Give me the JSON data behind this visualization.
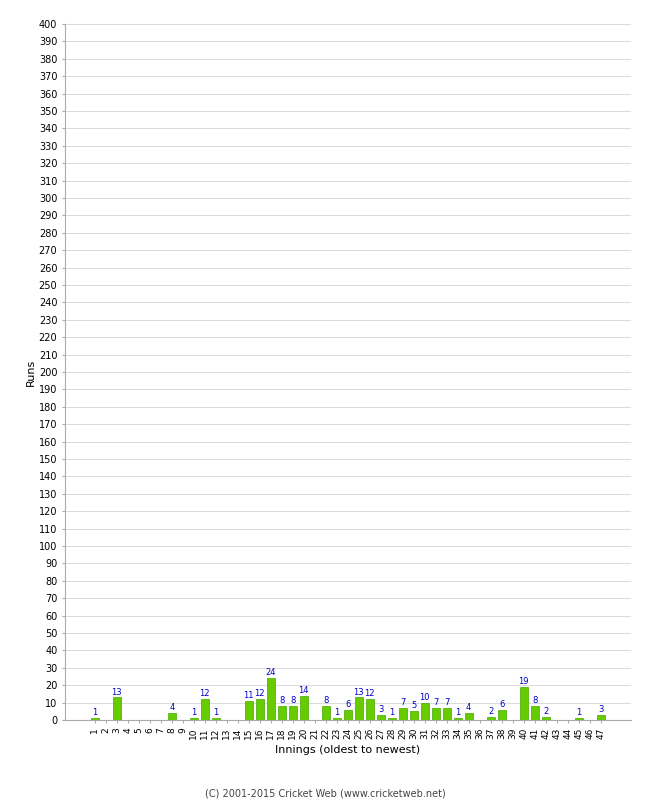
{
  "values": [
    1,
    0,
    13,
    0,
    0,
    0,
    0,
    4,
    0,
    1,
    12,
    1,
    0,
    0,
    11,
    12,
    24,
    8,
    8,
    14,
    0,
    8,
    1,
    6,
    13,
    12,
    3,
    1,
    7,
    5,
    10,
    7,
    7,
    1,
    4,
    0,
    2,
    6,
    0,
    19,
    8,
    2,
    0,
    0,
    1,
    0,
    3
  ],
  "x_labels": [
    "1",
    "2",
    "3",
    "4",
    "5",
    "6",
    "7",
    "8",
    "9",
    "10",
    "11",
    "12",
    "13",
    "14",
    "15",
    "16",
    "17",
    "18",
    "19",
    "20",
    "21",
    "22",
    "23",
    "24",
    "25",
    "26",
    "27",
    "28",
    "29",
    "30",
    "31",
    "32",
    "33",
    "34",
    "35",
    "36",
    "37",
    "38",
    "39",
    "40",
    "41",
    "42",
    "43",
    "44",
    "45",
    "46",
    "47"
  ],
  "bar_color": "#66cc00",
  "bar_edge_color": "#44aa00",
  "label_color": "#0000cc",
  "ylabel": "Runs",
  "xlabel": "Innings (oldest to newest)",
  "ylim": [
    0,
    400
  ],
  "background_color": "#ffffff",
  "grid_color": "#cccccc",
  "footer": "(C) 2001-2015 Cricket Web (www.cricketweb.net)"
}
